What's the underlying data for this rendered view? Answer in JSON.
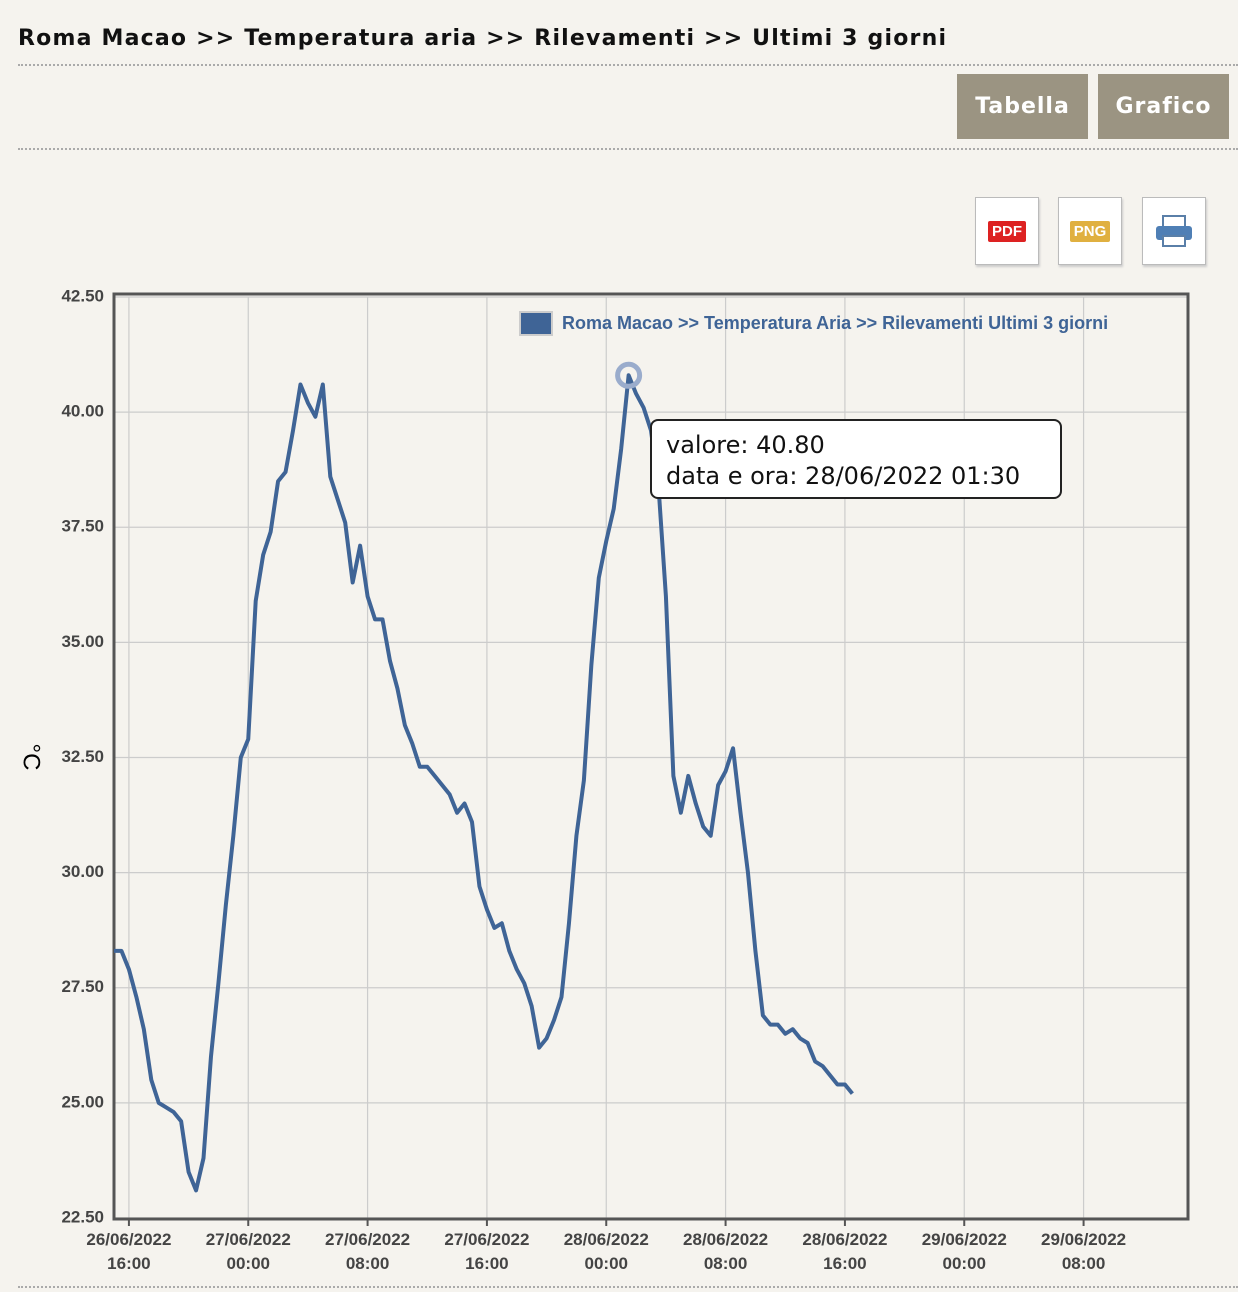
{
  "header": {
    "breadcrumb": "Roma Macao >> Temperatura aria >> Rilevamenti >> Ultimi 3 giorni"
  },
  "buttons": [
    "Tabella",
    "Grafico"
  ],
  "exports": [
    "PDF",
    "PNG"
  ],
  "tooltip": {
    "lines": [
      "valore: 40.80",
      "data e ora: 28/06/2022 01:30"
    ]
  },
  "chart_data": {
    "type": "line",
    "y_label": "°C",
    "x": [
      "26/06/2022 15:00",
      "26/06/2022 15:30",
      "26/06/2022 16:00",
      "26/06/2022 16:30",
      "26/06/2022 17:00",
      "26/06/2022 17:30",
      "26/06/2022 18:00",
      "26/06/2022 18:30",
      "26/06/2022 19:00",
      "26/06/2022 19:30",
      "26/06/2022 20:00",
      "26/06/2022 20:30",
      "26/06/2022 21:00",
      "26/06/2022 21:30",
      "26/06/2022 22:00",
      "26/06/2022 22:30",
      "26/06/2022 23:00",
      "26/06/2022 23:30",
      "27/06/2022 00:00",
      "27/06/2022 00:30",
      "27/06/2022 01:00",
      "27/06/2022 01:30",
      "27/06/2022 02:00",
      "27/06/2022 02:30",
      "27/06/2022 03:00",
      "27/06/2022 03:30",
      "27/06/2022 04:00",
      "27/06/2022 04:30",
      "27/06/2022 05:00",
      "27/06/2022 05:30",
      "27/06/2022 06:00",
      "27/06/2022 06:30",
      "27/06/2022 07:00",
      "27/06/2022 07:30",
      "27/06/2022 08:00",
      "27/06/2022 08:30",
      "27/06/2022 09:00",
      "27/06/2022 09:30",
      "27/06/2022 10:00",
      "27/06/2022 10:30",
      "27/06/2022 11:00",
      "27/06/2022 11:30",
      "27/06/2022 12:00",
      "27/06/2022 12:30",
      "27/06/2022 13:00",
      "27/06/2022 13:30",
      "27/06/2022 14:00",
      "27/06/2022 14:30",
      "27/06/2022 15:00",
      "27/06/2022 15:30",
      "27/06/2022 16:00",
      "27/06/2022 16:30",
      "27/06/2022 17:00",
      "27/06/2022 17:30",
      "27/06/2022 18:00",
      "27/06/2022 18:30",
      "27/06/2022 19:00",
      "27/06/2022 19:30",
      "27/06/2022 20:00",
      "27/06/2022 20:30",
      "27/06/2022 21:00",
      "27/06/2022 21:30",
      "27/06/2022 22:00",
      "27/06/2022 22:30",
      "27/06/2022 23:00",
      "27/06/2022 23:30",
      "28/06/2022 00:00",
      "28/06/2022 00:30",
      "28/06/2022 01:00",
      "28/06/2022 01:30",
      "28/06/2022 02:00",
      "28/06/2022 02:30",
      "28/06/2022 03:00",
      "28/06/2022 03:30",
      "28/06/2022 04:00",
      "28/06/2022 04:30",
      "28/06/2022 05:00",
      "28/06/2022 05:30",
      "28/06/2022 06:00",
      "28/06/2022 06:30",
      "28/06/2022 07:00",
      "28/06/2022 07:30",
      "28/06/2022 08:00",
      "28/06/2022 08:30",
      "28/06/2022 09:00",
      "28/06/2022 09:30",
      "28/06/2022 10:00",
      "28/06/2022 10:30",
      "28/06/2022 11:00",
      "28/06/2022 11:30",
      "28/06/2022 12:00",
      "28/06/2022 12:30",
      "28/06/2022 13:00",
      "28/06/2022 13:30",
      "28/06/2022 14:00",
      "28/06/2022 14:30",
      "28/06/2022 15:00",
      "28/06/2022 15:30",
      "28/06/2022 16:00",
      "28/06/2022 16:30"
    ],
    "series": [
      {
        "name": "Roma Macao >> Temperatura Aria >> Rilevamenti Ultimi 3 giorni",
        "color": "#3f6496",
        "values": [
          28.3,
          28.3,
          27.9,
          27.3,
          26.6,
          25.5,
          25.0,
          24.9,
          24.8,
          24.6,
          23.5,
          23.1,
          23.8,
          26.0,
          27.6,
          29.3,
          30.8,
          32.5,
          32.9,
          35.9,
          36.9,
          37.4,
          38.5,
          38.7,
          39.6,
          40.6,
          40.2,
          39.9,
          40.6,
          38.6,
          38.1,
          37.6,
          36.3,
          37.1,
          36.0,
          35.5,
          35.5,
          34.6,
          34.0,
          33.2,
          32.8,
          32.3,
          32.3,
          32.1,
          31.9,
          31.7,
          31.3,
          31.5,
          31.1,
          29.7,
          29.2,
          28.8,
          28.9,
          28.3,
          27.9,
          27.6,
          27.1,
          26.2,
          26.4,
          26.8,
          27.3,
          28.9,
          30.8,
          32.0,
          34.5,
          36.4,
          37.2,
          37.9,
          39.2,
          40.8,
          40.4,
          40.1,
          39.6,
          38.4,
          36.0,
          32.1,
          31.3,
          32.1,
          31.5,
          31.0,
          30.8,
          31.9,
          32.2,
          32.7,
          31.3,
          30.0,
          28.3,
          26.9,
          26.7,
          26.7,
          26.5,
          26.6,
          26.4,
          26.3,
          25.9,
          25.8,
          25.6,
          25.4,
          25.4,
          25.2
        ]
      }
    ],
    "xlim": [
      "26/06/2022 15:00",
      "29/06/2022 15:00"
    ],
    "xticks": [
      "26/06/2022 16:00",
      "27/06/2022 00:00",
      "27/06/2022 08:00",
      "27/06/2022 16:00",
      "28/06/2022 00:00",
      "28/06/2022 08:00",
      "28/06/2022 16:00",
      "29/06/2022 00:00",
      "29/06/2022 08:00"
    ],
    "ylim": [
      22.5,
      42.5
    ],
    "yticks": [
      {
        "value": 22.5,
        "label": "22.50"
      },
      {
        "value": 25,
        "label": "25.00"
      },
      {
        "value": 27.5,
        "label": "27.50"
      },
      {
        "value": 30,
        "label": "30.00"
      },
      {
        "value": 32.5,
        "label": "32.50"
      },
      {
        "value": 35,
        "label": "35.00"
      },
      {
        "value": 37.5,
        "label": "37.50"
      },
      {
        "value": 40,
        "label": "40.00"
      },
      {
        "value": 42.5,
        "label": "42.50"
      }
    ],
    "grid": true,
    "legend": "top-right"
  }
}
